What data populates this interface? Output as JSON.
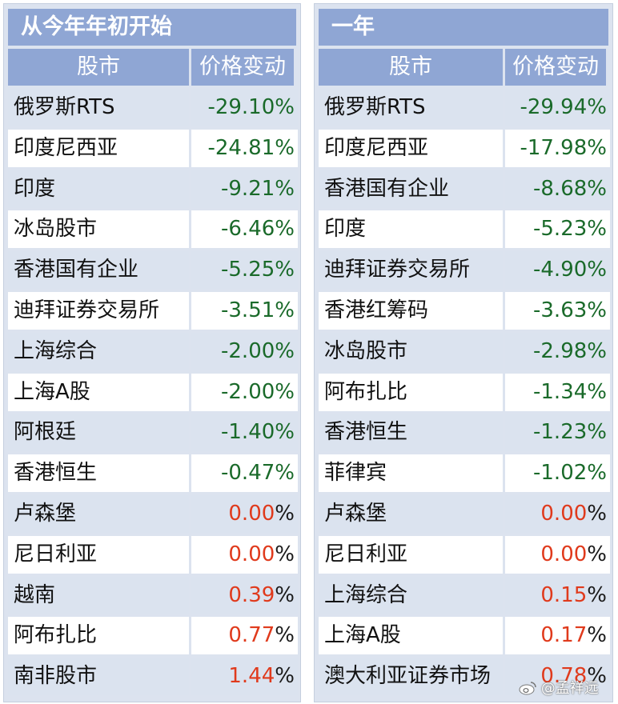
{
  "left": {
    "title": "从今年年初开始",
    "col_market": "股市",
    "col_change": "价格变动",
    "rows": [
      {
        "name": "俄罗斯RTS",
        "num": "-29.10",
        "sign": "neg"
      },
      {
        "name": "印度尼西亚",
        "num": "-24.81",
        "sign": "neg"
      },
      {
        "name": "印度",
        "num": "-9.21",
        "sign": "neg"
      },
      {
        "name": "冰岛股市",
        "num": "-6.46",
        "sign": "neg"
      },
      {
        "name": "香港国有企业",
        "num": "-5.25",
        "sign": "neg"
      },
      {
        "name": "迪拜证券交易所",
        "num": "-3.51",
        "sign": "neg"
      },
      {
        "name": "上海综合",
        "num": "-2.00",
        "sign": "neg"
      },
      {
        "name": "上海A股",
        "num": "-2.00",
        "sign": "neg"
      },
      {
        "name": "阿根廷",
        "num": "-1.40",
        "sign": "neg"
      },
      {
        "name": "香港恒生",
        "num": "-0.47",
        "sign": "neg"
      },
      {
        "name": "卢森堡",
        "num": "0.00",
        "sign": "pos"
      },
      {
        "name": "尼日利亚",
        "num": "0.00",
        "sign": "pos"
      },
      {
        "name": "越南",
        "num": "0.39",
        "sign": "pos"
      },
      {
        "name": "阿布扎比",
        "num": "0.77",
        "sign": "pos"
      },
      {
        "name": "南非股市",
        "num": "1.44",
        "sign": "pos"
      }
    ]
  },
  "right": {
    "title": "一年",
    "col_market": "股市",
    "col_change": "价格变动",
    "rows": [
      {
        "name": "俄罗斯RTS",
        "num": "-29.94",
        "sign": "neg"
      },
      {
        "name": "印度尼西亚",
        "num": "-17.98",
        "sign": "neg"
      },
      {
        "name": "香港国有企业",
        "num": "-8.68",
        "sign": "neg"
      },
      {
        "name": "印度",
        "num": "-5.23",
        "sign": "neg"
      },
      {
        "name": "迪拜证券交易所",
        "num": "-4.90",
        "sign": "neg"
      },
      {
        "name": "香港红筹码",
        "num": "-3.63",
        "sign": "neg"
      },
      {
        "name": "冰岛股市",
        "num": "-2.98",
        "sign": "neg"
      },
      {
        "name": "阿布扎比",
        "num": "-1.34",
        "sign": "neg"
      },
      {
        "name": "香港恒生",
        "num": "-1.23",
        "sign": "neg"
      },
      {
        "name": "菲律宾",
        "num": "-1.02",
        "sign": "neg"
      },
      {
        "name": "卢森堡",
        "num": "0.00",
        "sign": "pos"
      },
      {
        "name": "尼日利亚",
        "num": "0.00",
        "sign": "pos"
      },
      {
        "name": "上海综合",
        "num": "0.15",
        "sign": "pos"
      },
      {
        "name": "上海A股",
        "num": "0.17",
        "sign": "pos"
      },
      {
        "name": "澳大利亚证券市场",
        "num": "0.78",
        "sign": "pos"
      }
    ]
  },
  "percent_sign": "%",
  "colors": {
    "negative": "#1a6a2a",
    "positive": "#e03a1c",
    "header": "#8fa6d4"
  },
  "watermark": {
    "text": "@孟祥远",
    "icon": "weibo-logo-icon"
  }
}
